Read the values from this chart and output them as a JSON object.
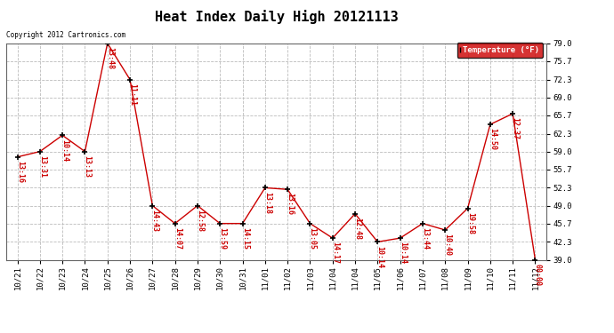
{
  "title": "Heat Index Daily High 20121113",
  "copyright_text": "Copyright 2012 Cartronics.com",
  "legend_label": "Temperature (°F)",
  "x_tick_labels": [
    "10/21",
    "10/22",
    "10/23",
    "10/24",
    "10/25",
    "10/26",
    "10/27",
    "10/28",
    "10/29",
    "10/30",
    "10/31",
    "11/01",
    "11/02",
    "11/03",
    "11/04",
    "11/04",
    "11/05",
    "11/06",
    "11/07",
    "11/08",
    "11/09",
    "11/10",
    "11/11",
    "11/12"
  ],
  "y_values": [
    58.0,
    59.0,
    62.0,
    59.0,
    79.0,
    72.3,
    49.0,
    45.7,
    49.0,
    45.7,
    45.7,
    52.3,
    52.0,
    45.7,
    43.0,
    47.5,
    42.3,
    43.0,
    45.7,
    44.5,
    48.5,
    64.0,
    66.0,
    39.0
  ],
  "point_labels": [
    "13:16",
    "13:31",
    "10:14",
    "13:13",
    "13:48",
    "11:11",
    "14:43",
    "14:07",
    "12:58",
    "13:59",
    "14:15",
    "13:18",
    "13:16",
    "13:05",
    "14:17",
    "12:48",
    "10:14",
    "10:14",
    "13:44",
    "10:40",
    "19:58",
    "14:50",
    "12:37",
    "00:00"
  ],
  "ylim": [
    39.0,
    79.0
  ],
  "yticks": [
    39.0,
    42.3,
    45.7,
    49.0,
    52.3,
    55.7,
    59.0,
    62.3,
    65.7,
    69.0,
    72.3,
    75.7,
    79.0
  ],
  "line_color": "#cc0000",
  "marker_color": "#000000",
  "bg_color": "#ffffff",
  "grid_color": "#bbbbbb",
  "label_color": "#cc0000",
  "title_fontsize": 11,
  "tick_fontsize": 6.5,
  "legend_bg": "#cc0000",
  "legend_fg": "#ffffff"
}
